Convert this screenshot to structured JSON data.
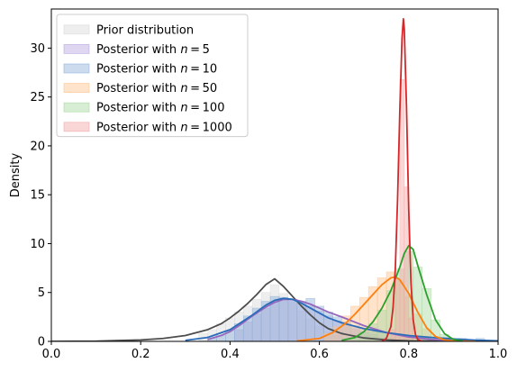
{
  "chart_data": {
    "type": "area",
    "xlabel": "",
    "ylabel": "Density",
    "xlim": [
      0.0,
      1.0
    ],
    "ylim": [
      0,
      34
    ],
    "xticks": [
      "0.0",
      "0.2",
      "0.4",
      "0.6",
      "0.8",
      "1.0"
    ],
    "yticks": [
      "0",
      "5",
      "10",
      "15",
      "20",
      "25",
      "30"
    ],
    "legend_position": "top-left",
    "grid": false,
    "series": [
      {
        "name": "Prior distribution",
        "patch_color": "#d9d9d9",
        "line_color": "#4d4d4d",
        "mean": 0.5,
        "sd": 0.07,
        "hist_x": [
          0.34,
          0.36,
          0.38,
          0.4,
          0.42,
          0.44,
          0.46,
          0.48,
          0.5,
          0.52,
          0.54,
          0.56,
          0.58,
          0.6,
          0.62,
          0.64,
          0.66
        ],
        "hist_h": [
          0.8,
          1.2,
          1.8,
          2.4,
          3.0,
          3.6,
          4.3,
          5.0,
          5.8,
          4.9,
          4.0,
          3.1,
          2.3,
          1.6,
          1.0,
          0.6,
          0.3
        ],
        "hist_w": 0.02,
        "curve_x": [
          0.0,
          0.1,
          0.2,
          0.25,
          0.3,
          0.35,
          0.38,
          0.4,
          0.42,
          0.44,
          0.46,
          0.48,
          0.5,
          0.52,
          0.54,
          0.56,
          0.58,
          0.6,
          0.62,
          0.65,
          0.7,
          0.75,
          0.8,
          0.9,
          1.0
        ],
        "curve_y": [
          0.0,
          0.02,
          0.15,
          0.3,
          0.6,
          1.2,
          1.8,
          2.4,
          3.1,
          3.9,
          4.8,
          5.8,
          6.4,
          5.6,
          4.6,
          3.6,
          2.7,
          1.9,
          1.3,
          0.8,
          0.35,
          0.15,
          0.06,
          0.01,
          0.0
        ]
      },
      {
        "name": "Posterior with n = 5",
        "patch_color": "#b9a6e0",
        "line_color": "#9467bd",
        "hist_x": [
          0.42,
          0.44,
          0.46,
          0.48,
          0.5,
          0.52,
          0.54,
          0.56,
          0.58,
          0.6,
          0.62,
          0.64,
          0.66,
          0.68,
          0.7,
          0.72,
          0.74,
          0.76
        ],
        "hist_h": [
          1.2,
          2.0,
          2.8,
          3.4,
          4.0,
          4.4,
          4.3,
          4.1,
          3.6,
          3.1,
          2.6,
          2.1,
          1.7,
          1.3,
          1.0,
          0.7,
          0.4,
          0.2
        ],
        "hist_w": 0.02,
        "curve_x": [
          0.35,
          0.38,
          0.4,
          0.42,
          0.45,
          0.48,
          0.5,
          0.52,
          0.54,
          0.56,
          0.58,
          0.6,
          0.62,
          0.65,
          0.7,
          0.75,
          0.8,
          0.85,
          0.9,
          0.95,
          1.0
        ],
        "curve_y": [
          0.2,
          0.6,
          1.0,
          1.6,
          2.6,
          3.5,
          4.0,
          4.3,
          4.3,
          4.1,
          3.8,
          3.4,
          3.0,
          2.5,
          1.6,
          0.9,
          0.45,
          0.2,
          0.08,
          0.03,
          0.0
        ]
      },
      {
        "name": "Posterior with n = 10",
        "patch_color": "#8fb2d9",
        "line_color": "#2a6cba",
        "hist_x": [
          0.36,
          0.38,
          0.4,
          0.42,
          0.44,
          0.46,
          0.48,
          0.5,
          0.52,
          0.54,
          0.56,
          0.58,
          0.6,
          0.62,
          0.64,
          0.66,
          0.68,
          0.7,
          0.72,
          0.74,
          0.76,
          0.78,
          0.8,
          0.84,
          0.88,
          0.92,
          0.96
        ],
        "hist_h": [
          0.3,
          0.6,
          1.1,
          1.8,
          2.6,
          3.4,
          4.1,
          4.6,
          4.5,
          4.3,
          4.0,
          4.4,
          3.6,
          3.0,
          2.5,
          2.0,
          1.6,
          1.3,
          1.0,
          0.9,
          0.8,
          0.7,
          0.6,
          0.5,
          0.4,
          0.3,
          0.3
        ],
        "hist_w": 0.02,
        "curve_x": [
          0.3,
          0.35,
          0.4,
          0.45,
          0.48,
          0.5,
          0.52,
          0.54,
          0.56,
          0.58,
          0.6,
          0.62,
          0.65,
          0.7,
          0.75,
          0.8,
          0.85,
          0.9,
          0.95,
          1.0
        ],
        "curve_y": [
          0.1,
          0.4,
          1.2,
          2.7,
          3.7,
          4.2,
          4.4,
          4.3,
          3.9,
          3.4,
          2.9,
          2.4,
          1.9,
          1.3,
          0.9,
          0.6,
          0.4,
          0.25,
          0.12,
          0.05
        ]
      },
      {
        "name": "Posterior with n = 50",
        "patch_color": "#ffc08a",
        "line_color": "#ff7f0e",
        "hist_x": [
          0.62,
          0.64,
          0.66,
          0.68,
          0.7,
          0.72,
          0.74,
          0.76,
          0.78,
          0.8,
          0.82,
          0.84,
          0.86
        ],
        "hist_h": [
          0.8,
          1.5,
          2.6,
          3.6,
          4.5,
          5.6,
          6.5,
          7.1,
          6.2,
          4.6,
          2.8,
          1.3,
          0.5
        ],
        "hist_w": 0.02,
        "curve_x": [
          0.55,
          0.6,
          0.63,
          0.66,
          0.68,
          0.7,
          0.72,
          0.74,
          0.76,
          0.77,
          0.78,
          0.8,
          0.82,
          0.84,
          0.86,
          0.88,
          0.9,
          0.95
        ],
        "curve_y": [
          0.05,
          0.3,
          0.9,
          1.9,
          2.8,
          3.8,
          4.8,
          5.8,
          6.5,
          6.6,
          6.3,
          4.9,
          3.0,
          1.4,
          0.5,
          0.15,
          0.05,
          0.0
        ]
      },
      {
        "name": "Posterior with n = 100",
        "patch_color": "#a7d8a0",
        "line_color": "#2ca02c",
        "hist_x": [
          0.68,
          0.7,
          0.72,
          0.74,
          0.76,
          0.78,
          0.8,
          0.82,
          0.84,
          0.86,
          0.88
        ],
        "hist_h": [
          0.4,
          0.9,
          1.8,
          3.2,
          5.2,
          7.4,
          9.2,
          7.6,
          5.4,
          2.2,
          0.7
        ],
        "hist_w": 0.02,
        "curve_x": [
          0.65,
          0.68,
          0.7,
          0.72,
          0.74,
          0.76,
          0.78,
          0.79,
          0.8,
          0.81,
          0.82,
          0.84,
          0.86,
          0.88,
          0.9,
          0.92
        ],
        "curve_y": [
          0.1,
          0.4,
          1.0,
          2.0,
          3.4,
          5.2,
          7.6,
          9.0,
          9.8,
          9.4,
          7.8,
          4.8,
          2.2,
          0.8,
          0.2,
          0.05
        ]
      },
      {
        "name": "Posterior with n = 1000",
        "patch_color": "#f4a6a6",
        "line_color": "#d62728",
        "hist_x": [
          0.765,
          0.775,
          0.785,
          0.795,
          0.805
        ],
        "hist_h": [
          1.2,
          6.5,
          26.8,
          15.8,
          2.4
        ],
        "hist_w": 0.01,
        "curve_x": [
          0.74,
          0.75,
          0.76,
          0.765,
          0.77,
          0.775,
          0.78,
          0.785,
          0.788,
          0.79,
          0.795,
          0.8,
          0.805,
          0.81,
          0.815,
          0.82,
          0.83
        ],
        "curve_y": [
          0.0,
          0.3,
          1.5,
          3.5,
          7.5,
          14.5,
          23.5,
          31.0,
          33.0,
          32.0,
          24.0,
          13.5,
          6.0,
          2.2,
          0.7,
          0.2,
          0.0
        ]
      }
    ]
  }
}
